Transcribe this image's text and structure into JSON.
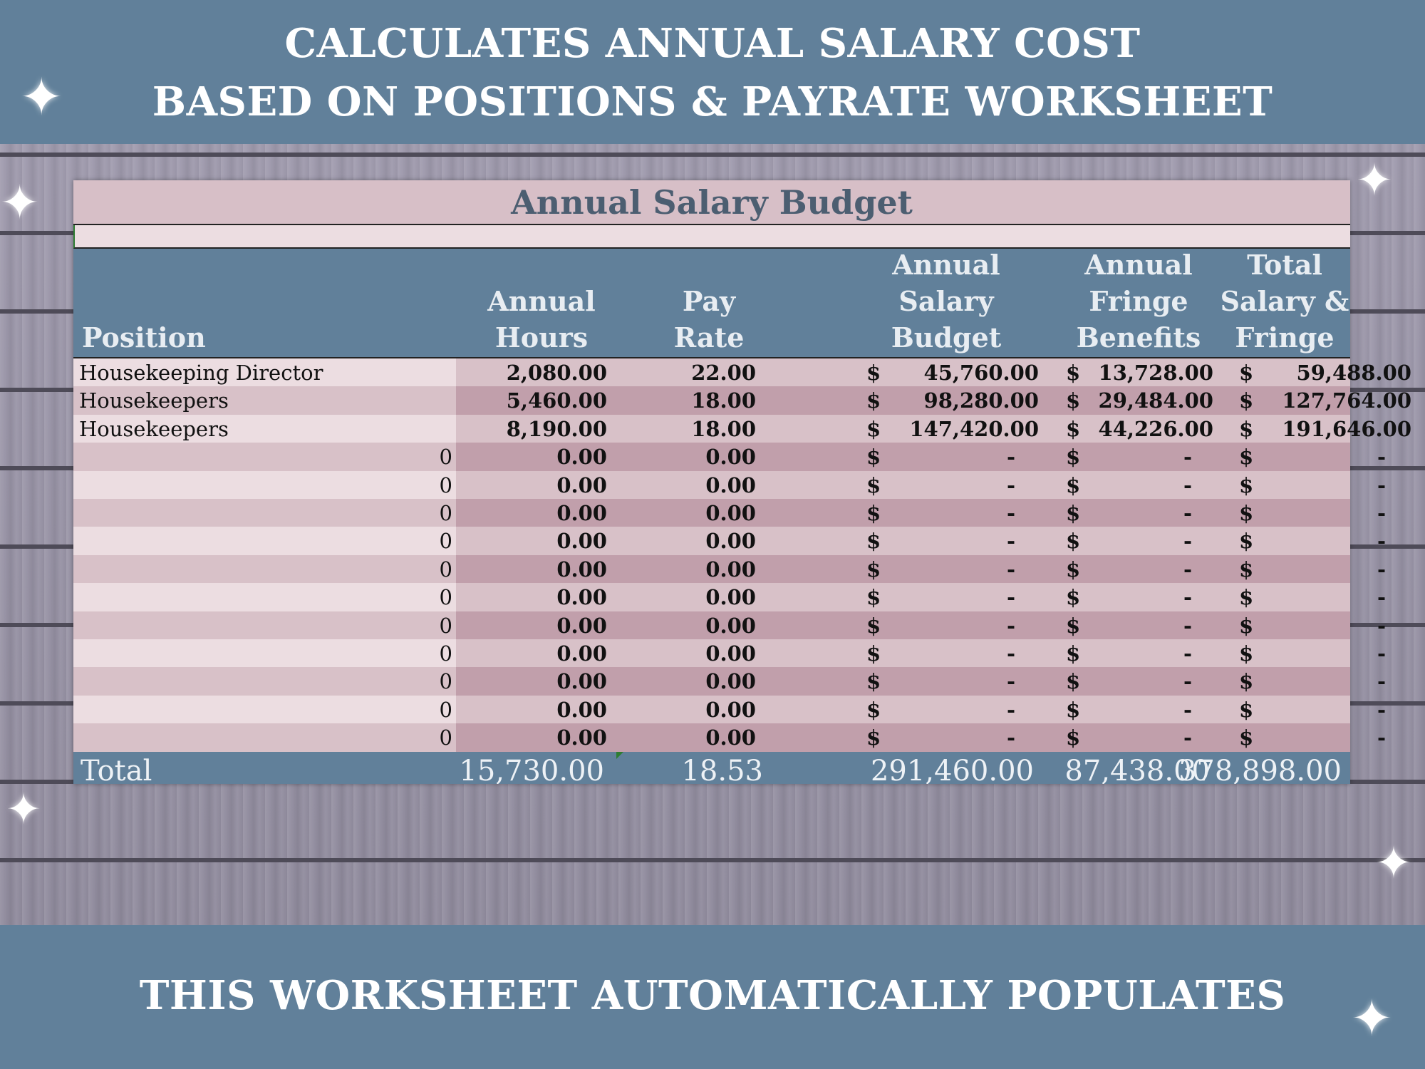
{
  "banner_top": {
    "line1": "CALCULATES ANNUAL SALARY COST",
    "line2": "BASED ON POSITIONS & PAYRATE WORKSHEET"
  },
  "banner_bottom": {
    "text": "THIS WORKSHEET AUTOMATICALLY POPULATES"
  },
  "sparkle_glyph": "✦",
  "sheet": {
    "title": "Annual Salary Budget",
    "headers": {
      "position": "Position",
      "hours": [
        "Annual",
        "Hours"
      ],
      "rate": [
        "Pay",
        "Rate"
      ],
      "salary": [
        "Annual",
        "Salary",
        "Budget"
      ],
      "fringe": [
        "Annual",
        "Fringe",
        "Benefits"
      ],
      "totalsf": [
        "Total",
        "Salary &",
        "Fringe"
      ]
    },
    "currency": "$",
    "rows": [
      {
        "position": "Housekeeping Director",
        "hours": "2,080.00",
        "rate": "22.00",
        "salary": "45,760.00",
        "fringe": "13,728.00",
        "total": "59,488.00"
      },
      {
        "position": "Housekeepers",
        "hours": "5,460.00",
        "rate": "18.00",
        "salary": "98,280.00",
        "fringe": "29,484.00",
        "total": "127,764.00"
      },
      {
        "position": "Housekeepers",
        "hours": "8,190.00",
        "rate": "18.00",
        "salary": "147,420.00",
        "fringe": "44,226.00",
        "total": "191,646.00"
      },
      {
        "position": "0",
        "hours": "0.00",
        "rate": "0.00",
        "salary": "-",
        "fringe": "-",
        "total": "-"
      },
      {
        "position": "0",
        "hours": "0.00",
        "rate": "0.00",
        "salary": "-",
        "fringe": "-",
        "total": "-"
      },
      {
        "position": "0",
        "hours": "0.00",
        "rate": "0.00",
        "salary": "-",
        "fringe": "-",
        "total": "-"
      },
      {
        "position": "0",
        "hours": "0.00",
        "rate": "0.00",
        "salary": "-",
        "fringe": "-",
        "total": "-"
      },
      {
        "position": "0",
        "hours": "0.00",
        "rate": "0.00",
        "salary": "-",
        "fringe": "-",
        "total": "-"
      },
      {
        "position": "0",
        "hours": "0.00",
        "rate": "0.00",
        "salary": "-",
        "fringe": "-",
        "total": "-"
      },
      {
        "position": "0",
        "hours": "0.00",
        "rate": "0.00",
        "salary": "-",
        "fringe": "-",
        "total": "-"
      },
      {
        "position": "0",
        "hours": "0.00",
        "rate": "0.00",
        "salary": "-",
        "fringe": "-",
        "total": "-"
      },
      {
        "position": "0",
        "hours": "0.00",
        "rate": "0.00",
        "salary": "-",
        "fringe": "-",
        "total": "-"
      },
      {
        "position": "0",
        "hours": "0.00",
        "rate": "0.00",
        "salary": "-",
        "fringe": "-",
        "total": "-"
      },
      {
        "position": "0",
        "hours": "0.00",
        "rate": "0.00",
        "salary": "-",
        "fringe": "-",
        "total": "-"
      }
    ],
    "totals": {
      "label": "Total",
      "hours": "15,730.00",
      "rate": "18.53",
      "salary": "291,460.00",
      "fringe": "87,438.00",
      "total": "378,898.00"
    }
  },
  "colors": {
    "banner": "#61809a",
    "header": "#61809a",
    "row_light": "#ecdde1",
    "row_dark": "#d8c1c8",
    "num_dark": "#c19fab",
    "title_text": "#4c5e71"
  }
}
